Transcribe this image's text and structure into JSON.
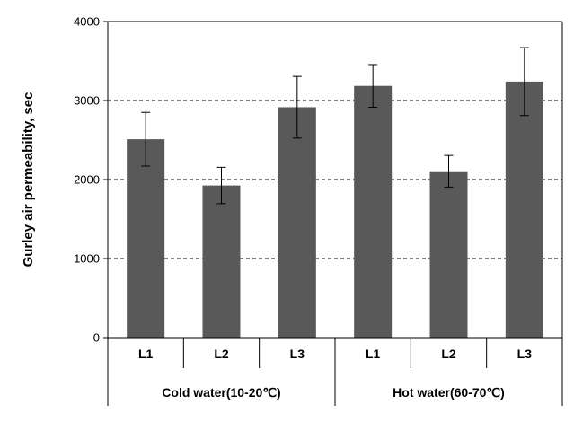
{
  "chart_data": {
    "type": "bar",
    "ylabel": "Gurley air permeability, sec",
    "xlabel": "",
    "ylim": [
      0,
      4000
    ],
    "yticks": [
      0,
      1000,
      2000,
      3000,
      4000
    ],
    "ytick_labels": [
      "0",
      "1000",
      "2000",
      "3000",
      "4000"
    ],
    "grid": "horizontal dashed",
    "bar_color": "#595959",
    "categories": [
      "L1",
      "L2",
      "L3",
      "L1",
      "L2",
      "L3"
    ],
    "groups": [
      {
        "label": "Cold water(10-20℃)",
        "categories": [
          "L1",
          "L2",
          "L3"
        ]
      },
      {
        "label": "Hot water(60-70℃)",
        "categories": [
          "L1",
          "L2",
          "L3"
        ]
      }
    ],
    "values": [
      2510,
      1925,
      2915,
      3185,
      2105,
      3240
    ],
    "error": [
      340,
      230,
      390,
      270,
      200,
      430
    ]
  }
}
